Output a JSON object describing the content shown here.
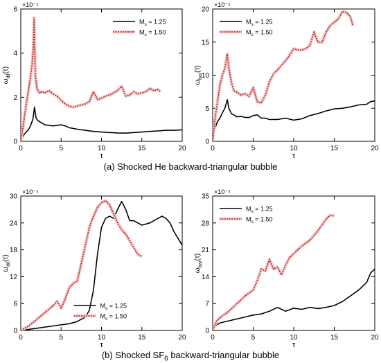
{
  "captions": {
    "a": "(a) Shocked He backward-triangular bubble",
    "b_prefix": "(b) Shocked SF",
    "b_sub": "6",
    "b_suffix": " backward-triangular bubble"
  },
  "colors": {
    "series_1": "#000000",
    "series_2": "#b22222",
    "series_2_halo": "#f6c9c9"
  },
  "chart_data": [
    {
      "id": "a-left",
      "type": "line",
      "ylabel": "ω_dil(τ)",
      "xlabel": "τ",
      "exponent_label": "×10⁻⁴",
      "xlim": [
        0,
        20
      ],
      "ylim": [
        0,
        6
      ],
      "xticks": [
        0,
        5,
        10,
        15,
        20
      ],
      "yticks": [
        0,
        2,
        4,
        6
      ],
      "legend_position": "top-right",
      "series": [
        {
          "name": "Ms = 1.25",
          "style": "solid",
          "x": [
            0,
            0.3,
            0.6,
            0.9,
            1.2,
            1.5,
            1.7,
            1.9,
            2.1,
            2.5,
            3,
            3.5,
            4,
            4.5,
            5,
            5.5,
            6,
            7,
            8,
            9,
            10,
            11,
            12,
            13,
            14,
            15,
            16,
            17,
            18,
            19,
            20
          ],
          "y": [
            0,
            0.25,
            0.4,
            0.5,
            0.7,
            1.0,
            1.55,
            1.05,
            0.95,
            0.85,
            0.75,
            0.72,
            0.7,
            0.72,
            0.75,
            0.7,
            0.62,
            0.55,
            0.5,
            0.45,
            0.42,
            0.4,
            0.38,
            0.37,
            0.4,
            0.42,
            0.45,
            0.47,
            0.5,
            0.5,
            0.52
          ]
        },
        {
          "name": "Ms = 1.50",
          "style": "dotted",
          "x": [
            0,
            0.3,
            0.6,
            0.9,
            1.2,
            1.4,
            1.55,
            1.65,
            1.8,
            2.0,
            2.3,
            2.6,
            3,
            3.5,
            4,
            4.5,
            5,
            5.5,
            6,
            6.5,
            7,
            7.5,
            8,
            8.5,
            9,
            9.5,
            10,
            10.5,
            11,
            11.5,
            12,
            12.5,
            13,
            13.5,
            14,
            14.5,
            15,
            15.5,
            16,
            16.5,
            17,
            17.3
          ],
          "y": [
            0,
            0.7,
            1.5,
            2.2,
            2.9,
            3.5,
            4.2,
            5.6,
            3.0,
            2.4,
            2.2,
            2.25,
            2.2,
            2.3,
            2.15,
            2.05,
            1.85,
            1.7,
            1.6,
            1.55,
            1.6,
            1.65,
            1.7,
            1.8,
            2.25,
            1.9,
            1.95,
            2.05,
            2.1,
            2.2,
            2.3,
            2.5,
            2.05,
            2.1,
            2.25,
            2.15,
            2.2,
            2.25,
            2.4,
            2.3,
            2.35,
            2.25
          ]
        }
      ]
    },
    {
      "id": "a-right",
      "type": "line",
      "ylabel": "ω_bar(τ)",
      "xlabel": "τ",
      "exponent_label": "×10⁻⁴",
      "xlim": [
        0,
        20
      ],
      "ylim": [
        0,
        20
      ],
      "xticks": [
        0,
        5,
        10,
        15,
        20
      ],
      "yticks": [
        0,
        5,
        10,
        15,
        20
      ],
      "legend_position": "top-left",
      "series": [
        {
          "name": "Ms = 1.25",
          "style": "solid",
          "x": [
            0,
            0.3,
            0.6,
            0.9,
            1.2,
            1.5,
            1.8,
            2.0,
            2.3,
            2.6,
            3,
            3.5,
            4,
            4.5,
            5,
            5.5,
            6,
            6.5,
            7,
            7.5,
            8,
            9,
            10,
            11,
            12,
            13,
            14,
            15,
            16,
            17,
            18,
            19,
            19.5,
            20
          ],
          "y": [
            0,
            2.0,
            3.0,
            3.5,
            4.3,
            5.0,
            6.3,
            5.0,
            4.2,
            4.0,
            3.7,
            3.8,
            3.6,
            3.6,
            3.9,
            4.0,
            3.5,
            3.5,
            3.3,
            3.3,
            3.3,
            3.5,
            3.2,
            3.4,
            3.9,
            4.2,
            4.6,
            4.9,
            5.0,
            5.2,
            5.5,
            5.6,
            6.0,
            6.1
          ]
        },
        {
          "name": "Ms = 1.50",
          "style": "dotted",
          "x": [
            0,
            0.3,
            0.6,
            0.9,
            1.2,
            1.5,
            1.8,
            2.0,
            2.3,
            2.6,
            3,
            3.5,
            4,
            4.5,
            5,
            5.5,
            6,
            6.5,
            7,
            7.5,
            8,
            8.5,
            9,
            9.5,
            10,
            10.5,
            11,
            11.5,
            12,
            12.5,
            13,
            13.5,
            14,
            14.5,
            15,
            15.5,
            16,
            16.5,
            17,
            17.3
          ],
          "y": [
            0,
            3.5,
            6.0,
            8.5,
            10.0,
            11.0,
            13.2,
            11.0,
            9.0,
            7.7,
            7.4,
            7.0,
            7.2,
            6.8,
            8.1,
            6.0,
            5.8,
            7.0,
            9.0,
            10.2,
            10.8,
            11.5,
            12.2,
            13.0,
            14.0,
            13.8,
            13.8,
            14.0,
            14.5,
            16.5,
            15.0,
            15.0,
            16.5,
            17.5,
            18.0,
            18.5,
            19.6,
            19.5,
            18.8,
            17.5
          ]
        }
      ]
    },
    {
      "id": "b-left",
      "type": "line",
      "ylabel": "ω_dil(τ)",
      "xlabel": "τ",
      "exponent_label": "×10⁻⁴",
      "xlim": [
        0,
        20
      ],
      "ylim": [
        0,
        30
      ],
      "xticks": [
        0,
        5,
        10,
        15,
        20
      ],
      "yticks": [
        0,
        6,
        12,
        18,
        24,
        30
      ],
      "legend_position": "bottom-center",
      "series": [
        {
          "name": "Ms = 1.25",
          "style": "solid",
          "x": [
            0,
            2,
            4,
            6,
            7,
            8,
            8.5,
            9,
            9.5,
            10,
            10.5,
            11,
            11.5,
            12,
            12.5,
            13,
            13.5,
            14,
            15,
            16,
            17,
            17.5,
            18,
            18.5,
            19,
            19.5,
            20
          ],
          "y": [
            0,
            0.5,
            1.0,
            1.5,
            2.0,
            3.0,
            4.5,
            9.0,
            17.0,
            23.0,
            25.0,
            25.5,
            25.0,
            27.0,
            28.8,
            27.0,
            24.5,
            24.5,
            23.5,
            24.0,
            25.0,
            25.5,
            25.0,
            24.0,
            22.0,
            20.5,
            19.0
          ]
        },
        {
          "name": "Ms = 1.50",
          "style": "dotted",
          "x": [
            0,
            1,
            2,
            3,
            4,
            4.5,
            5,
            5.5,
            6,
            6.5,
            7,
            7.5,
            8,
            8.5,
            9,
            9.5,
            10,
            10.5,
            11,
            11.5,
            12,
            12.5,
            13,
            13.5,
            14,
            14.5,
            15
          ],
          "y": [
            0,
            1.0,
            2.5,
            4.0,
            5.5,
            6.5,
            5.0,
            7.0,
            9.5,
            10.5,
            11.0,
            15.0,
            19.0,
            23.0,
            25.5,
            27.5,
            28.5,
            29.0,
            28.0,
            26.0,
            24.0,
            22.5,
            21.5,
            20.0,
            18.5,
            17.0,
            16.5
          ]
        }
      ]
    },
    {
      "id": "b-right",
      "type": "line",
      "ylabel": "ω_bar(τ)",
      "xlabel": "τ",
      "exponent_label": "×10⁻⁴",
      "xlim": [
        0,
        20
      ],
      "ylim": [
        0,
        35
      ],
      "xticks": [
        0,
        5,
        10,
        15,
        20
      ],
      "yticks": [
        0,
        7,
        14,
        21,
        28,
        35
      ],
      "legend_position": "top-left",
      "series": [
        {
          "name": "Ms = 1.25",
          "style": "solid",
          "x": [
            0,
            0.5,
            1,
            2,
            3,
            4,
            5,
            6,
            7,
            7.5,
            8,
            8.5,
            9,
            10,
            11,
            12,
            13,
            14,
            15,
            16,
            17,
            18,
            19,
            19.5,
            20
          ],
          "y": [
            0,
            1.5,
            2.0,
            2.5,
            3.0,
            3.5,
            4.0,
            4.3,
            5.0,
            5.5,
            6.0,
            5.5,
            5.0,
            5.8,
            5.5,
            6.0,
            5.7,
            6.0,
            6.5,
            7.5,
            9.0,
            10.5,
            12.5,
            15.0,
            16.0
          ]
        },
        {
          "name": "Ms = 1.50",
          "style": "dotted",
          "x": [
            0,
            0.5,
            1,
            2,
            3,
            4,
            5,
            5.5,
            6,
            6.5,
            7,
            7.5,
            8,
            8.5,
            9,
            9.5,
            10,
            11,
            12,
            13,
            13.5,
            14,
            14.5,
            15
          ],
          "y": [
            0,
            2.5,
            3.5,
            5.0,
            7.0,
            9.0,
            10.5,
            13.0,
            16.0,
            15.5,
            18.5,
            16.0,
            16.5,
            14.5,
            17.0,
            19.0,
            20.0,
            22.0,
            23.5,
            26.0,
            27.5,
            29.0,
            30.0,
            29.8
          ]
        }
      ]
    }
  ]
}
